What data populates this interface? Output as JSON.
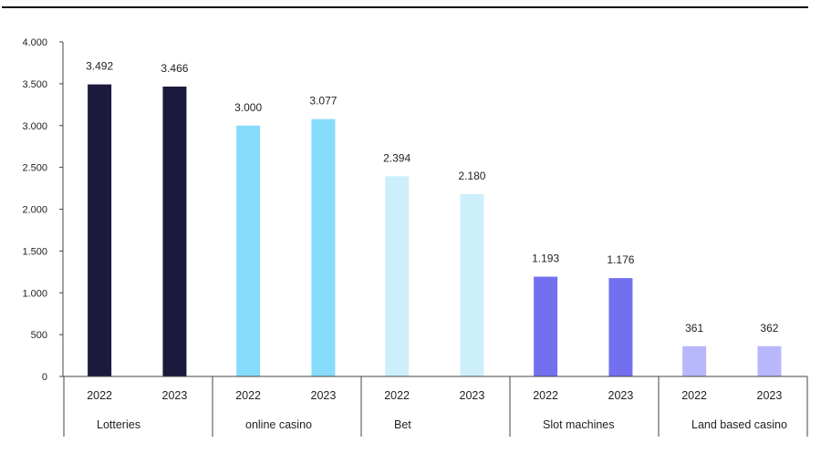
{
  "chart_data": {
    "type": "bar",
    "title": "",
    "xlabel": "",
    "ylabel": "",
    "ylim": [
      0,
      4000
    ],
    "y_ticks": [
      0,
      500,
      1000,
      1500,
      2000,
      2500,
      3000,
      3500,
      4000
    ],
    "y_tick_labels": [
      "0",
      "500",
      "1.000",
      "1.500",
      "2.000",
      "2.500",
      "3.000",
      "3.500",
      "4.000"
    ],
    "grid": false,
    "legend": "none",
    "groups": [
      {
        "name": "Lotteries",
        "color": "#1b1a3d",
        "bars": [
          {
            "year": "2022",
            "value": 3492,
            "label": "3.492"
          },
          {
            "year": "2023",
            "value": 3466,
            "label": "3.466"
          }
        ]
      },
      {
        "name": "online casino",
        "color": "#86dcfa",
        "bars": [
          {
            "year": "2022",
            "value": 3000,
            "label": "3.000"
          },
          {
            "year": "2023",
            "value": 3077,
            "label": "3.077"
          }
        ]
      },
      {
        "name": "Bet",
        "color": "#cdeffb",
        "bars": [
          {
            "year": "2022",
            "value": 2394,
            "label": "2.394"
          },
          {
            "year": "2023",
            "value": 2180,
            "label": "2.180"
          }
        ]
      },
      {
        "name": "Slot machines",
        "color": "#7370f0",
        "bars": [
          {
            "year": "2022",
            "value": 1193,
            "label": "1.193"
          },
          {
            "year": "2023",
            "value": 1176,
            "label": "1.176"
          }
        ]
      },
      {
        "name": "Land based casino",
        "color": "#b9b7fb",
        "bars": [
          {
            "year": "2022",
            "value": 361,
            "label": "361"
          },
          {
            "year": "2023",
            "value": 362,
            "label": "362"
          }
        ]
      }
    ]
  }
}
